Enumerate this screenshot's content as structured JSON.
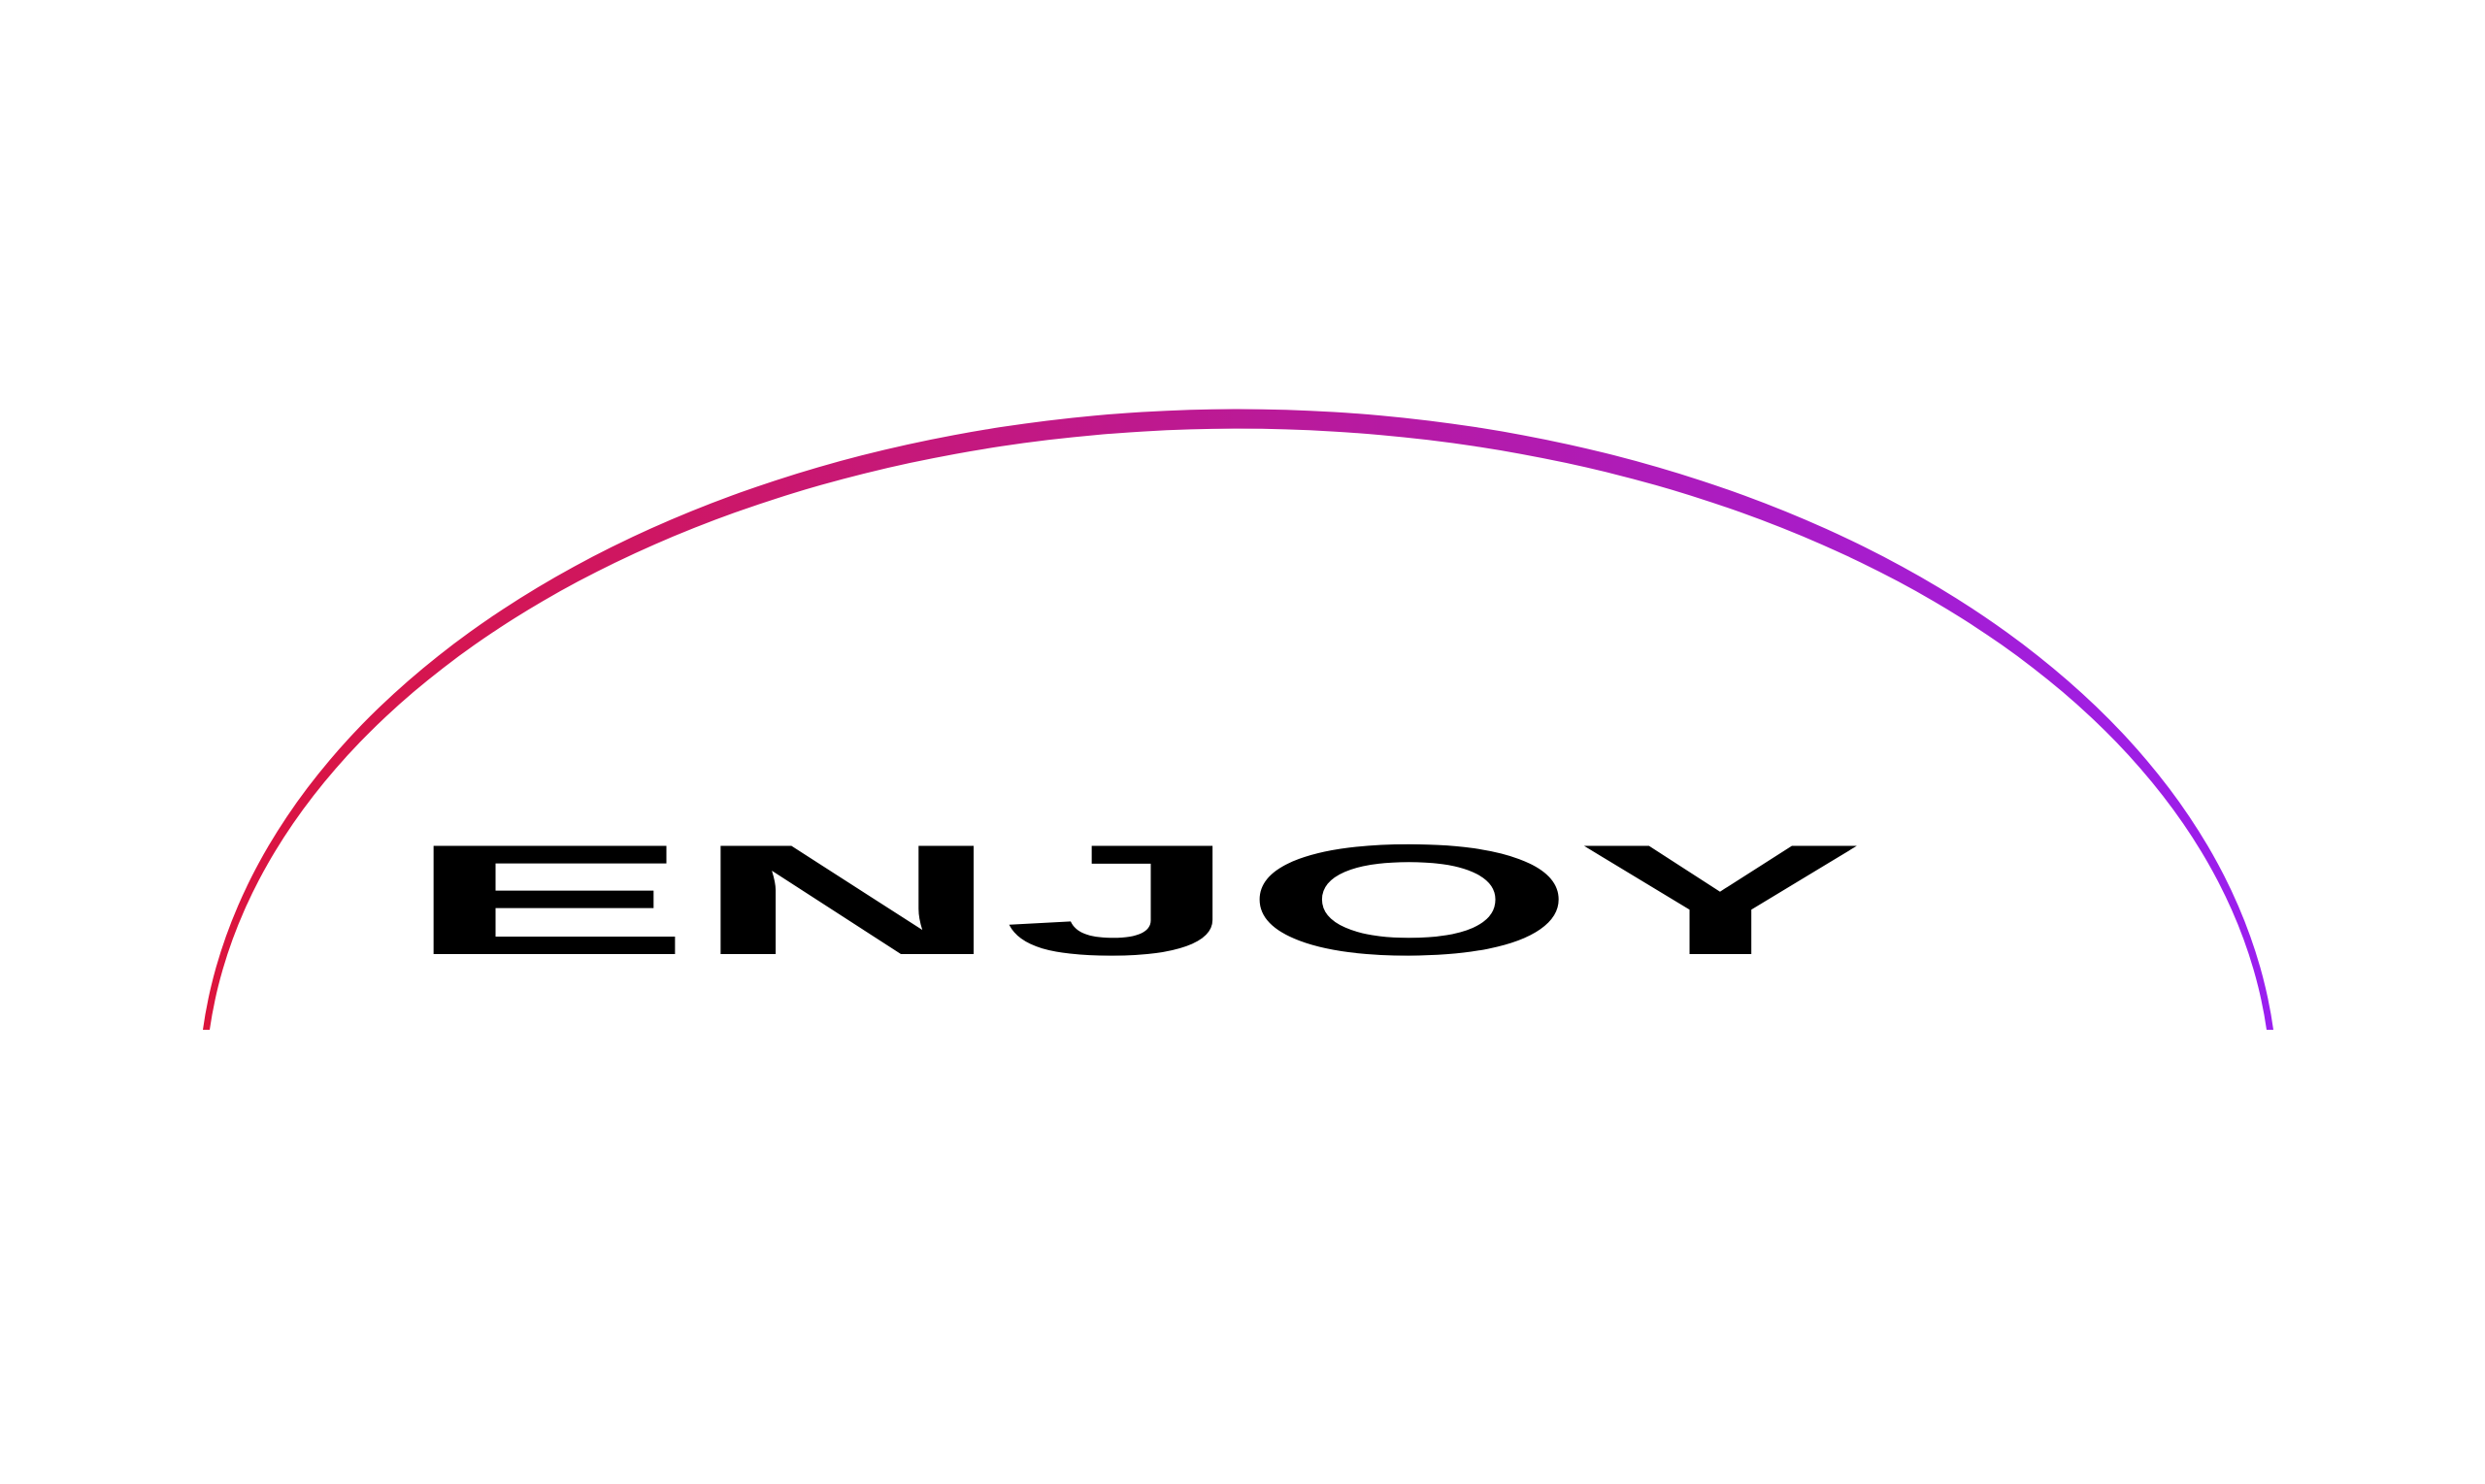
{
  "logo": {
    "text": "ENJOY",
    "text_color": "#000000",
    "arc_gradient": [
      "#dc143c",
      "#9a1ff0"
    ]
  }
}
